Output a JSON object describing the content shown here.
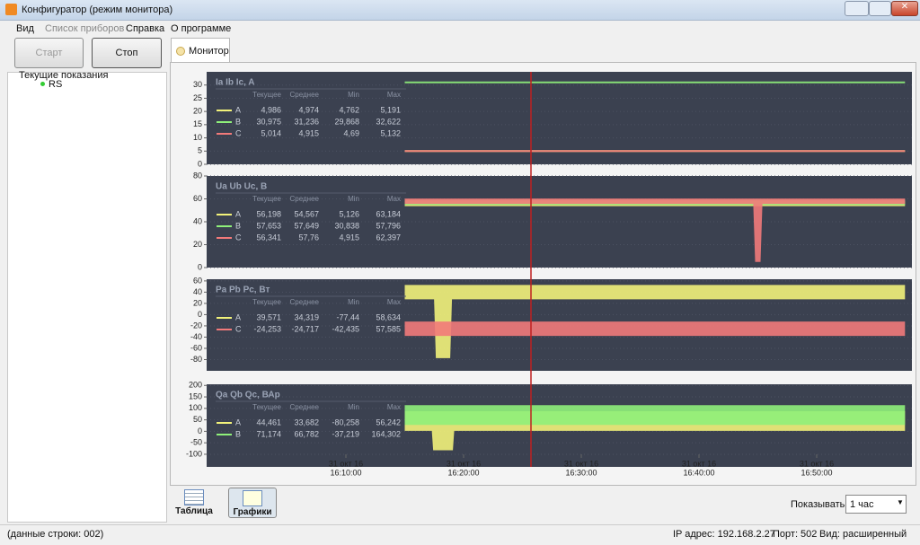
{
  "window": {
    "title": "Конфигуратор (режим монитора)"
  },
  "menu": [
    "Вид",
    "Список приборов",
    "Справка",
    "О программе"
  ],
  "toolbar": {
    "start": "Старт",
    "stop": "Стоп"
  },
  "tree": {
    "root": "Текущие показания",
    "child": "RS"
  },
  "tab": "Монитор",
  "stat_columns": [
    "Текущее",
    "Среднее",
    "Min",
    "Max"
  ],
  "time_axis": {
    "ticks": [
      {
        "date": "31 окт 16",
        "time": "16:10:00"
      },
      {
        "date": "31 окт 16",
        "time": "16:20:00"
      },
      {
        "date": "31 окт 16",
        "time": "16:30:00"
      },
      {
        "date": "31 окт 16",
        "time": "16:40:00"
      },
      {
        "date": "31 окт 16",
        "time": "16:50:00"
      }
    ]
  },
  "chart_data": [
    {
      "type": "line",
      "title": "Ia Ib Ic, A",
      "ylim": [
        0,
        35
      ],
      "yticks": [
        0,
        5,
        10,
        15,
        20,
        25,
        30
      ],
      "x": [
        "16:15:00",
        "16:20:00",
        "16:25:00",
        "16:30:00",
        "16:35:00",
        "16:40:00",
        "16:45:00",
        "16:50:00",
        "16:55:00",
        "16:57:30"
      ],
      "series": [
        {
          "name": "A",
          "color": "#f2f27a",
          "values": [
            5,
            5,
            5,
            5,
            5,
            5,
            5,
            5,
            5,
            5
          ],
          "stats": [
            "4,986",
            "4,974",
            "4,762",
            "5,191"
          ]
        },
        {
          "name": "B",
          "color": "#8ff07a",
          "values": [
            31,
            31,
            31,
            31,
            31,
            31,
            31,
            31,
            31,
            31
          ],
          "stats": [
            "30,975",
            "31,236",
            "29,868",
            "32,622"
          ]
        },
        {
          "name": "C",
          "color": "#f27a7a",
          "values": [
            5,
            5,
            5,
            5,
            5,
            5,
            5,
            5,
            5,
            5
          ],
          "stats": [
            "5,014",
            "4,915",
            "4,69",
            "5,132"
          ]
        }
      ]
    },
    {
      "type": "line",
      "title": "Ua Ub Uc, В",
      "ylim": [
        0,
        80
      ],
      "yticks": [
        0,
        20,
        40,
        60,
        80
      ],
      "x": [
        "16:15:00",
        "16:20:00",
        "16:25:00",
        "16:30:00",
        "16:35:00",
        "16:40:00",
        "16:44:50",
        "16:45:00",
        "16:45:10",
        "16:50:00",
        "16:55:00",
        "16:57:30"
      ],
      "series": [
        {
          "name": "A",
          "color": "#f2f27a",
          "values": [
            56,
            56,
            56,
            56,
            56,
            56,
            56,
            56,
            56,
            56,
            56,
            56
          ],
          "stats": [
            "56,198",
            "54,567",
            "5,126",
            "63,184"
          ]
        },
        {
          "name": "B",
          "color": "#8ff07a",
          "values": [
            57,
            57,
            57,
            57,
            57,
            57,
            57,
            57,
            57,
            57,
            57,
            57
          ],
          "stats": [
            "57,653",
            "57,649",
            "30,838",
            "57,796"
          ]
        },
        {
          "name": "C",
          "color": "#f27a7a",
          "values": [
            58,
            58,
            58,
            58,
            58,
            58,
            58,
            5,
            58,
            58,
            58,
            58
          ],
          "stats": [
            "56,341",
            "57,76",
            "4,915",
            "62,397"
          ]
        }
      ]
    },
    {
      "type": "line",
      "title": "Pa Pb Pc, Вт",
      "ylim": [
        -100,
        63
      ],
      "yticks": [
        -80,
        -60,
        -40,
        -20,
        0,
        20,
        40,
        60
      ],
      "x": [
        "16:15:00",
        "16:18:05",
        "16:18:15",
        "16:18:25",
        "16:20:00",
        "16:25:00",
        "16:30:00",
        "16:35:00",
        "16:40:00",
        "16:45:00",
        "16:50:00",
        "16:55:00",
        "16:57:30"
      ],
      "series": [
        {
          "name": "A",
          "color": "#f2f27a",
          "values": [
            40,
            40,
            -77,
            40,
            40,
            40,
            40,
            40,
            40,
            40,
            40,
            40,
            40
          ],
          "stats": [
            "39,571",
            "34,319",
            "-77,44",
            "58,634"
          ]
        },
        {
          "name": "C",
          "color": "#f27a7a",
          "values": [
            -25,
            -25,
            -25,
            -25,
            -25,
            -25,
            -25,
            -25,
            -25,
            -25,
            -25,
            -25,
            -25
          ],
          "stats": [
            "-24,253",
            "-24,717",
            "-42,435",
            "57,585"
          ]
        }
      ]
    },
    {
      "type": "line",
      "title": "Qa Qb Qc, ВАр",
      "ylim": [
        -155,
        205
      ],
      "yticks": [
        -100,
        -50,
        0,
        50,
        100,
        150,
        200
      ],
      "x": [
        "16:15:00",
        "16:18:05",
        "16:18:15",
        "16:18:25",
        "16:20:00",
        "16:25:00",
        "16:30:00",
        "16:35:00",
        "16:40:00",
        "16:45:00",
        "16:50:00",
        "16:55:00",
        "16:57:30"
      ],
      "series": [
        {
          "name": "A",
          "color": "#f2f27a",
          "values": [
            45,
            45,
            -80,
            45,
            45,
            45,
            45,
            45,
            45,
            45,
            45,
            45,
            45
          ],
          "stats": [
            "44,461",
            "33,682",
            "-80,258",
            "56,242"
          ]
        },
        {
          "name": "B",
          "color": "#8ff07a",
          "values": [
            71,
            71,
            71,
            71,
            71,
            71,
            71,
            71,
            71,
            71,
            71,
            71,
            71
          ],
          "stats": [
            "71,174",
            "66,782",
            "-37,219",
            "164,302"
          ]
        }
      ]
    }
  ],
  "bottom": {
    "table_button": "Таблица",
    "charts_button": "Графики",
    "show_label": "Показывать:",
    "show_value": "1 час"
  },
  "status": {
    "rows": "(данные строки: 002)",
    "ip": "IP адрес: 192.168.2.27",
    "port": "Порт: 502",
    "view": "Вид: расширенный"
  }
}
